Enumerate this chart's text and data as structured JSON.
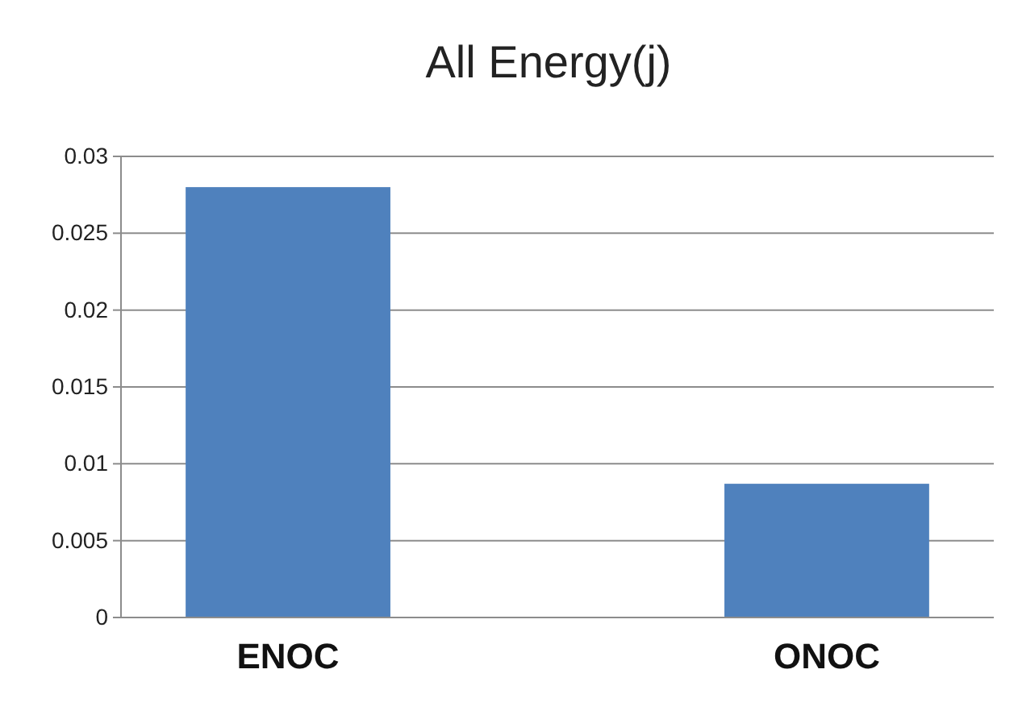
{
  "chart_data": {
    "type": "bar",
    "title": "All Energy(j)",
    "categories": [
      "ENOC",
      "ONOC"
    ],
    "values": [
      0.028,
      0.0087
    ],
    "color": "#4f81bd",
    "ylim": [
      0,
      0.03
    ],
    "yticks": [
      0,
      0.005,
      0.01,
      0.015,
      0.02,
      0.025,
      0.03
    ],
    "grid": "y"
  }
}
